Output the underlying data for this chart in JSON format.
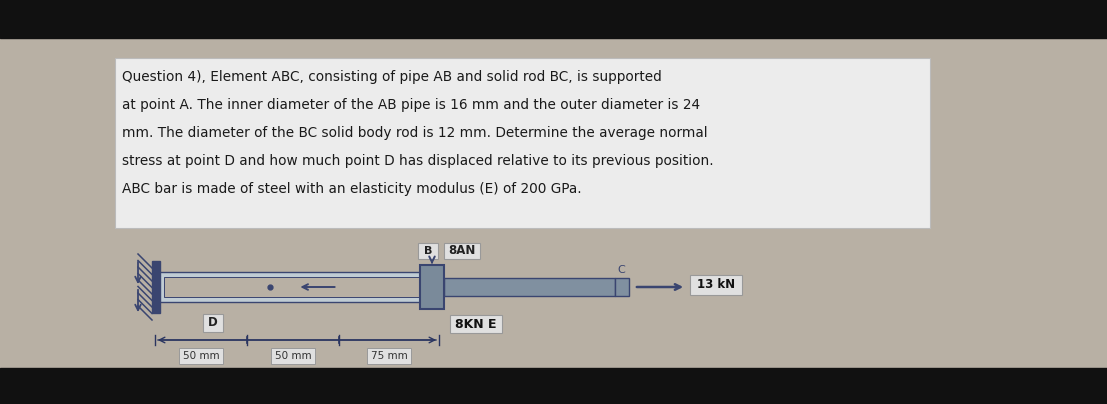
{
  "bg_color": "#b8b0a4",
  "outer_bg": "#111111",
  "text_box_bg": "#ececec",
  "text_box_text": "#1a1a1a",
  "question_text_lines": [
    "Question 4), Element ABC, consisting of pipe AB and solid rod BC, is supported",
    "at point A. The inner diameter of the AB pipe is 16 mm and the outer diameter is 24",
    "mm. The diameter of the BC solid body rod is 12 mm. Determine the average normal",
    "stress at point D and how much point D has displaced relative to its previous position.",
    "ABC bar is made of steel with an elasticity modulus (E) of 200 GPa."
  ],
  "label_8AN": "8AN",
  "label_B": "B",
  "label_8KN_E": "8KN E",
  "label_D": "D",
  "label_13KN": "13 kN",
  "label_50mm_1": "50 mm",
  "label_50mm_2": "50 mm",
  "label_75mm": "75 mm",
  "label_C": "C",
  "drawing_color": "#3a4570",
  "wall_color": "#3a4570",
  "pipe_color": "#8a9aaa",
  "pipe_fill": "#c0ccd4",
  "label_box_bg": "#e0e0e0",
  "label_box_edge": "#999999",
  "dim_color": "#2a3560"
}
